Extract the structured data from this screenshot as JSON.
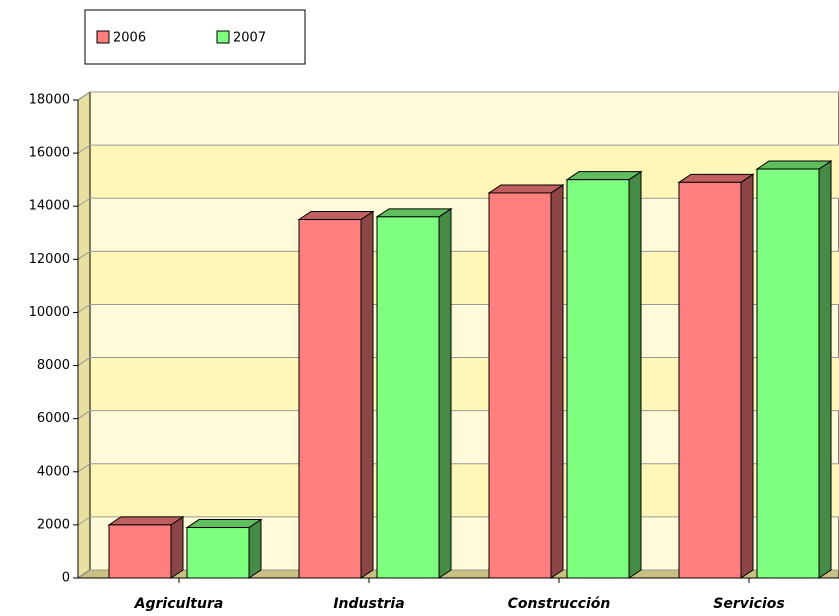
{
  "chart_data": {
    "type": "bar3d",
    "categories": [
      "Agricultura",
      "Industria",
      "Construcción",
      "Servicios"
    ],
    "series": [
      {
        "name": "2006",
        "color": "#ff7f7f",
        "values": [
          2000,
          13500,
          14500,
          14900
        ]
      },
      {
        "name": "2007",
        "color": "#7fff7f",
        "values": [
          1900,
          13600,
          15000,
          15400
        ]
      }
    ],
    "ylim": [
      0,
      18000
    ],
    "yticks": [
      0,
      2000,
      4000,
      6000,
      8000,
      10000,
      12000,
      14000,
      16000,
      18000
    ],
    "grid": true,
    "legend": "top-left"
  }
}
